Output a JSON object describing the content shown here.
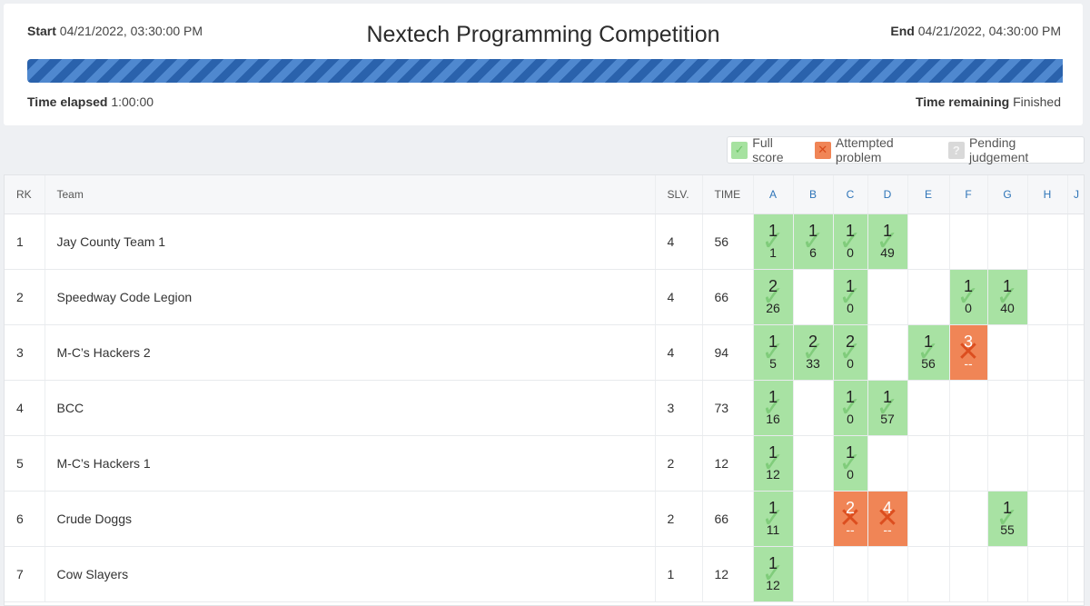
{
  "contest": {
    "title": "Nextech Programming Competition",
    "start_label": "Start",
    "start_value": "04/21/2022, 03:30:00 PM",
    "end_label": "End",
    "end_value": "04/21/2022, 04:30:00 PM",
    "elapsed_label": "Time elapsed",
    "elapsed_value": "1:00:00",
    "remaining_label": "Time remaining",
    "remaining_value": "Finished",
    "progress_fraction": 1.0
  },
  "legend": {
    "full": "Full score",
    "attempted": "Attempted problem",
    "pending": "Pending judgement"
  },
  "icons": {
    "full": "check-icon",
    "attempted": "x-icon",
    "pending": "question-icon"
  },
  "colors": {
    "full": "#a8e2a3",
    "attempted": "#f08556",
    "pending": "#d9d9d9",
    "progress": "#3a74bf"
  },
  "columns": {
    "rank": "RK",
    "team": "Team",
    "solved": "SLV.",
    "time": "TIME"
  },
  "problems": [
    "A",
    "B",
    "C",
    "D",
    "E",
    "F",
    "G",
    "H",
    "J"
  ],
  "rows": [
    {
      "rank": "1",
      "team": "Jay County Team 1",
      "solved": "4",
      "time": "56",
      "cells": [
        {
          "status": "full",
          "tries": "1",
          "time": "1"
        },
        {
          "status": "full",
          "tries": "1",
          "time": "6"
        },
        {
          "status": "full",
          "tries": "1",
          "time": "0"
        },
        {
          "status": "full",
          "tries": "1",
          "time": "49"
        },
        null,
        null,
        null,
        null,
        null
      ]
    },
    {
      "rank": "2",
      "team": "Speedway Code Legion",
      "solved": "4",
      "time": "66",
      "cells": [
        {
          "status": "full",
          "tries": "2",
          "time": "26"
        },
        null,
        {
          "status": "full",
          "tries": "1",
          "time": "0"
        },
        null,
        null,
        {
          "status": "full",
          "tries": "1",
          "time": "0"
        },
        {
          "status": "full",
          "tries": "1",
          "time": "40"
        },
        null,
        null
      ]
    },
    {
      "rank": "3",
      "team": "M-C’s Hackers 2",
      "solved": "4",
      "time": "94",
      "cells": [
        {
          "status": "full",
          "tries": "1",
          "time": "5"
        },
        {
          "status": "full",
          "tries": "2",
          "time": "33"
        },
        {
          "status": "full",
          "tries": "2",
          "time": "0"
        },
        null,
        {
          "status": "full",
          "tries": "1",
          "time": "56"
        },
        {
          "status": "attempted",
          "tries": "3",
          "time": "--"
        },
        null,
        null,
        null
      ]
    },
    {
      "rank": "4",
      "team": "BCC",
      "solved": "3",
      "time": "73",
      "cells": [
        {
          "status": "full",
          "tries": "1",
          "time": "16"
        },
        null,
        {
          "status": "full",
          "tries": "1",
          "time": "0"
        },
        {
          "status": "full",
          "tries": "1",
          "time": "57"
        },
        null,
        null,
        null,
        null,
        null
      ]
    },
    {
      "rank": "5",
      "team": "M-C’s Hackers 1",
      "solved": "2",
      "time": "12",
      "cells": [
        {
          "status": "full",
          "tries": "1",
          "time": "12"
        },
        null,
        {
          "status": "full",
          "tries": "1",
          "time": "0"
        },
        null,
        null,
        null,
        null,
        null,
        null
      ]
    },
    {
      "rank": "6",
      "team": "Crude Doggs",
      "solved": "2",
      "time": "66",
      "cells": [
        {
          "status": "full",
          "tries": "1",
          "time": "11"
        },
        null,
        {
          "status": "attempted",
          "tries": "2",
          "time": "--"
        },
        {
          "status": "attempted",
          "tries": "4",
          "time": "--"
        },
        null,
        null,
        {
          "status": "full",
          "tries": "1",
          "time": "55"
        },
        null,
        null
      ]
    },
    {
      "rank": "7",
      "team": "Cow Slayers",
      "solved": "1",
      "time": "12",
      "cells": [
        {
          "status": "full",
          "tries": "1",
          "time": "12"
        },
        null,
        null,
        null,
        null,
        null,
        null,
        null,
        null
      ]
    }
  ]
}
